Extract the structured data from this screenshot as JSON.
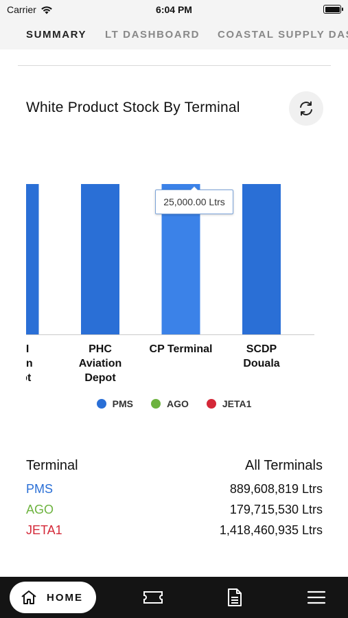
{
  "status_bar": {
    "carrier": "Carrier",
    "time": "6:04 PM"
  },
  "tabs": [
    {
      "label": "SUMMARY",
      "active": true
    },
    {
      "label": "LT DASHBOARD",
      "active": false
    },
    {
      "label": "COASTAL SUPPLY DASHBOARD",
      "active": false
    }
  ],
  "card": {
    "title": "White Product Stock By Terminal"
  },
  "chart_data": {
    "type": "bar",
    "categories": [
      "UHI Aviation Depot",
      "PHC Aviation Depot",
      "CP Terminal",
      "SCDP Douala"
    ],
    "category_labels_visible": [
      [
        "UHI",
        "ation",
        "epot"
      ],
      [
        "PHC",
        "Aviation",
        "Depot"
      ],
      [
        "CP Terminal"
      ],
      [
        "SCDP",
        "Douala"
      ]
    ],
    "series": [
      {
        "name": "PMS",
        "color": "#2a6fd6",
        "values": [
          25000,
          25000,
          25000,
          25000
        ]
      }
    ],
    "tooltip": "25,000.00 Ltrs",
    "highlighted_category": "CP Terminal",
    "ylim": [
      0,
      25000
    ],
    "grid": false,
    "legend_position": "bottom"
  },
  "legend": [
    {
      "label": "PMS",
      "color": "#2a6fd6"
    },
    {
      "label": "AGO",
      "color": "#6db33f"
    },
    {
      "label": "JETA1",
      "color": "#d42838"
    }
  ],
  "summary": {
    "header_left": "Terminal",
    "header_right": "All Terminals",
    "rows": [
      {
        "label": "PMS",
        "value": "889,608,819 Ltrs",
        "color": "#2a6fd6"
      },
      {
        "label": "AGO",
        "value": "179,715,530 Ltrs",
        "color": "#6db33f"
      },
      {
        "label": "JETA1",
        "value": "1,418,460,935 Ltrs",
        "color": "#d42838"
      }
    ]
  },
  "bottom_nav": {
    "home_label": "HOME",
    "icons": [
      "home-icon",
      "ticket-icon",
      "document-icon",
      "menu-icon"
    ]
  },
  "colors": {
    "accent": "#2a6fd6",
    "highlight": "#3b82e8",
    "nav_bg": "#141414"
  }
}
